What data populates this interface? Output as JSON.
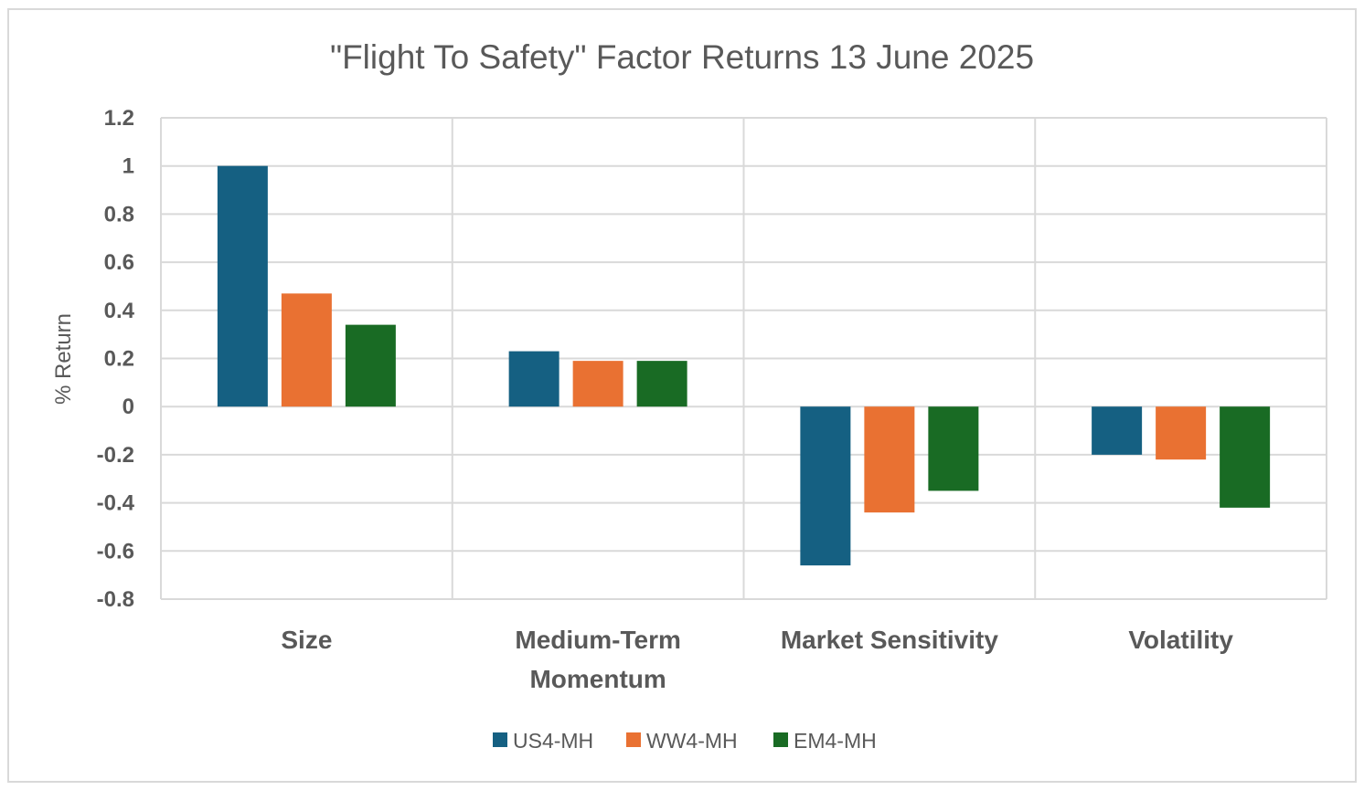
{
  "chart_data": {
    "type": "bar",
    "title": "\"Flight To Safety\" Factor Returns 13 June 2025",
    "xlabel": "",
    "ylabel": "% Return",
    "ylim": [
      -0.8,
      1.2
    ],
    "yticks": [
      "1.2",
      "1",
      "0.8",
      "0.6",
      "0.4",
      "0.2",
      "0",
      "-0.2",
      "-0.4",
      "-0.6",
      "-0.8"
    ],
    "categories": [
      "Size",
      "Medium-Term Momentum",
      "Market Sensitivity",
      "Volatility"
    ],
    "category_lines": [
      [
        "Size"
      ],
      [
        "Medium-Term",
        "Momentum"
      ],
      [
        "Market Sensitivity"
      ],
      [
        "Volatility"
      ]
    ],
    "series": [
      {
        "name": "US4-MH",
        "color": "#156082",
        "values": [
          1.0,
          0.23,
          -0.66,
          -0.2
        ]
      },
      {
        "name": "WW4-MH",
        "color": "#E97132",
        "values": [
          0.47,
          0.19,
          -0.44,
          -0.22
        ]
      },
      {
        "name": "EM4-MH",
        "color": "#196B24",
        "values": [
          0.34,
          0.19,
          -0.35,
          -0.42
        ]
      }
    ],
    "grid": true,
    "legend_position": "bottom"
  }
}
